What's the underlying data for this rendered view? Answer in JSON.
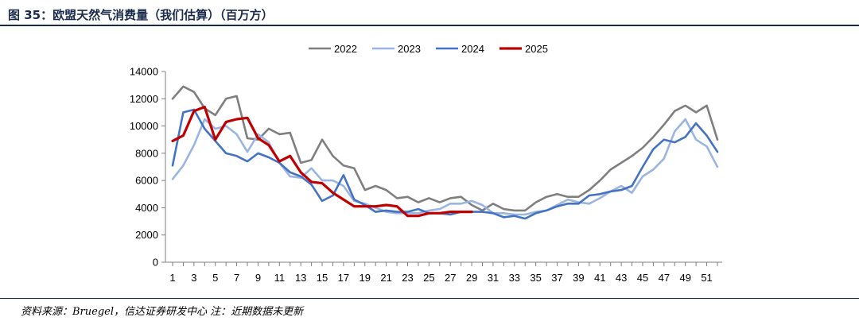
{
  "header": {
    "title": "图 35：欧盟天然气消费量（我们估算）（百万方）"
  },
  "footer": {
    "source": "资料来源：Bruegel，信达证券研发中心 注：近期数据未更新"
  },
  "chart_data": {
    "type": "line",
    "title": "欧盟天然气消费量（我们估算）（百万方）",
    "xlabel": "",
    "ylabel": "",
    "xlim": [
      1,
      52
    ],
    "ylim": [
      0,
      14000
    ],
    "x_ticks": [
      "1",
      "3",
      "5",
      "7",
      "9",
      "11",
      "13",
      "15",
      "17",
      "19",
      "21",
      "23",
      "25",
      "27",
      "29",
      "31",
      "33",
      "35",
      "37",
      "39",
      "41",
      "43",
      "45",
      "47",
      "49",
      "51"
    ],
    "y_ticks": [
      "0",
      "2000",
      "4000",
      "6000",
      "8000",
      "10000",
      "12000",
      "14000"
    ],
    "legend_position": "top-center",
    "grid": false,
    "series": [
      {
        "name": "2022",
        "color": "#7f7f7f",
        "x": [
          1,
          2,
          3,
          4,
          5,
          6,
          7,
          8,
          9,
          10,
          11,
          12,
          13,
          14,
          15,
          16,
          17,
          18,
          19,
          20,
          21,
          22,
          23,
          24,
          25,
          26,
          27,
          28,
          29,
          30,
          31,
          32,
          33,
          34,
          35,
          36,
          37,
          38,
          39,
          40,
          41,
          42,
          43,
          44,
          45,
          46,
          47,
          48,
          49,
          50,
          51,
          52
        ],
        "values": [
          12000,
          12900,
          12500,
          11300,
          10800,
          12000,
          12200,
          9100,
          9000,
          9800,
          9400,
          9500,
          7300,
          7500,
          9000,
          7800,
          7100,
          6900,
          5300,
          5600,
          5300,
          4700,
          4800,
          4400,
          4700,
          4400,
          4700,
          4800,
          4200,
          3800,
          4300,
          3900,
          3800,
          3800,
          4400,
          4800,
          5000,
          4800,
          4800,
          5300,
          6000,
          6800,
          7300,
          7800,
          8400,
          9200,
          10100,
          11100,
          11500,
          11000,
          11500,
          9000
        ]
      },
      {
        "name": "2023",
        "color": "#9bb5e3",
        "x": [
          1,
          2,
          3,
          4,
          5,
          6,
          7,
          8,
          9,
          10,
          11,
          12,
          13,
          14,
          15,
          16,
          17,
          18,
          19,
          20,
          21,
          22,
          23,
          24,
          25,
          26,
          27,
          28,
          29,
          30,
          31,
          32,
          33,
          34,
          35,
          36,
          37,
          38,
          39,
          40,
          41,
          42,
          43,
          44,
          45,
          46,
          47,
          48,
          49,
          50,
          51,
          52
        ],
        "values": [
          6100,
          7100,
          8600,
          10500,
          9800,
          10000,
          9400,
          8100,
          9400,
          8800,
          7300,
          6300,
          6200,
          6900,
          6000,
          6000,
          5600,
          4500,
          4300,
          4000,
          3700,
          3600,
          3600,
          3600,
          3800,
          3900,
          4300,
          4300,
          4500,
          4200,
          3600,
          3600,
          3500,
          3500,
          3700,
          3800,
          4200,
          4600,
          4400,
          4300,
          4700,
          5200,
          5600,
          5100,
          6300,
          6800,
          7600,
          9600,
          10500,
          9000,
          8500,
          7000
        ]
      },
      {
        "name": "2024",
        "color": "#4472c4",
        "x": [
          1,
          2,
          3,
          4,
          5,
          6,
          7,
          8,
          9,
          10,
          11,
          12,
          13,
          14,
          15,
          16,
          17,
          18,
          19,
          20,
          21,
          22,
          23,
          24,
          25,
          26,
          27,
          28,
          29,
          30,
          31,
          32,
          33,
          34,
          35,
          36,
          37,
          38,
          39,
          40,
          41,
          42,
          43,
          44,
          45,
          46,
          47,
          48,
          49,
          50,
          51,
          52
        ],
        "values": [
          7100,
          11000,
          11200,
          9800,
          8900,
          8000,
          7800,
          7400,
          8000,
          7700,
          7300,
          6600,
          6300,
          5700,
          4500,
          4900,
          6400,
          4600,
          4200,
          3700,
          3800,
          3700,
          3700,
          3900,
          3600,
          3600,
          3500,
          3700,
          3700,
          3700,
          3600,
          3300,
          3400,
          3200,
          3600,
          3800,
          4100,
          4300,
          4300,
          4900,
          5000,
          5200,
          5300,
          5600,
          7000,
          8300,
          9000,
          8800,
          9200,
          10200,
          9300,
          8100
        ]
      },
      {
        "name": "2025",
        "color": "#c00000",
        "x": [
          1,
          2,
          3,
          4,
          5,
          6,
          7,
          8,
          9,
          10,
          11,
          12,
          13,
          14,
          15,
          16,
          17,
          18,
          19,
          20,
          21,
          22,
          23,
          24,
          25,
          26,
          27,
          28,
          29
        ],
        "values": [
          8900,
          9300,
          11100,
          11400,
          9000,
          10300,
          10500,
          10600,
          9100,
          8600,
          7400,
          7800,
          6600,
          5900,
          5800,
          5100,
          4600,
          4100,
          4100,
          4100,
          4200,
          4100,
          3400,
          3400,
          3600,
          3600,
          3700,
          3700,
          3700
        ]
      }
    ]
  }
}
